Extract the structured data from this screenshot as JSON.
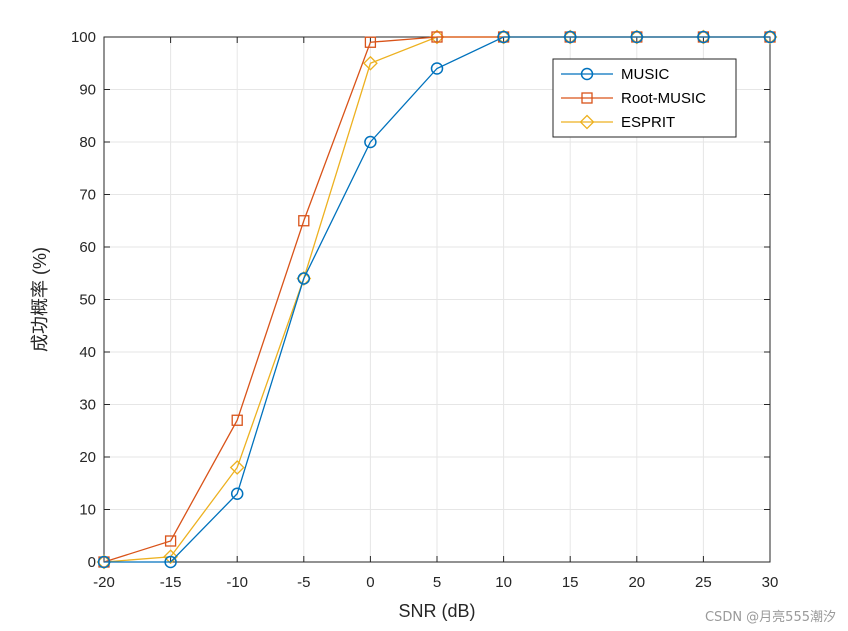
{
  "chart_data": {
    "type": "line",
    "x": [
      -20,
      -15,
      -10,
      -5,
      0,
      5,
      10,
      15,
      20,
      25,
      30
    ],
    "series": [
      {
        "name": "MUSIC",
        "color": "#0072BD",
        "marker": "circle",
        "values": [
          0,
          0,
          13,
          54,
          80,
          94,
          100,
          100,
          100,
          100,
          100
        ]
      },
      {
        "name": "Root-MUSIC",
        "color": "#D95319",
        "marker": "square",
        "values": [
          0,
          4,
          27,
          65,
          99,
          100,
          100,
          100,
          100,
          100,
          100
        ]
      },
      {
        "name": "ESPRIT",
        "color": "#EDB120",
        "marker": "diamond",
        "values": [
          0,
          1,
          18,
          54,
          95,
          100,
          100,
          100,
          100,
          100,
          100
        ]
      }
    ],
    "xlabel": "SNR (dB)",
    "ylabel": "成功概率 (%)",
    "xlim": [
      -20,
      30
    ],
    "ylim": [
      0,
      100
    ],
    "xticks": [
      -20,
      -15,
      -10,
      -5,
      0,
      5,
      10,
      15,
      20,
      25,
      30
    ],
    "yticks": [
      0,
      10,
      20,
      30,
      40,
      50,
      60,
      70,
      80,
      90,
      100
    ],
    "grid": true,
    "legend_position": "top-right"
  },
  "watermark": "CSDN @月亮555潮汐"
}
